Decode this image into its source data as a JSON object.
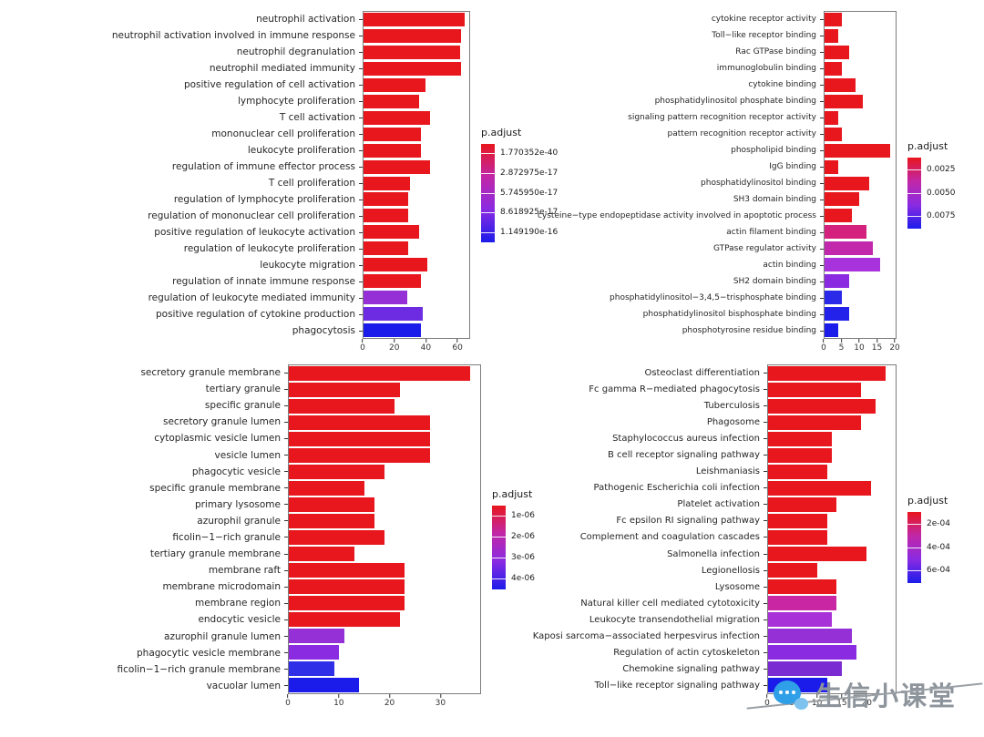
{
  "colors": {
    "background": "#ffffff",
    "bar_high_significance": "#E8161D",
    "bar_mid_significance": "#8A2BE2",
    "bar_low_significance": "#1C1CEA",
    "panel_border": "#7d7d7d"
  },
  "watermark": {
    "text": "生信小课堂",
    "icon": "chat-bubbles-icon",
    "text_color": "#8d949b",
    "icon_color": "#2f9fe8"
  },
  "chart_data": [
    {
      "type": "bar",
      "orientation": "horizontal",
      "position": "top-left",
      "title": "",
      "xlabel": "",
      "ylabel": "",
      "grid": false,
      "xlim": [
        0,
        68
      ],
      "xticks": [
        0,
        20,
        40,
        60
      ],
      "legend": {
        "title": "p.adjust",
        "position": "right",
        "labels": [
          "1.770352e-40",
          "2.872975e-17",
          "5.745950e-17",
          "8.618925e-17",
          "1.149190e-16"
        ],
        "gradient_top_to_bottom": [
          "#E8161D",
          "#C127A7",
          "#8A2BE2",
          "#1C1CEA"
        ]
      },
      "categories": [
        "neutrophil activation",
        "neutrophil activation involved in immune response",
        "neutrophil degranulation",
        "neutrophil mediated immunity",
        "positive regulation of cell activation",
        "lymphocyte proliferation",
        "T cell activation",
        "mononuclear cell proliferation",
        "leukocyte proliferation",
        "regulation of immune effector process",
        "T cell proliferation",
        "regulation of lymphocyte proliferation",
        "regulation of mononuclear cell proliferation",
        "positive regulation of leukocyte activation",
        "regulation of leukocyte proliferation",
        "leukocyte migration",
        "regulation of innate immune response",
        "regulation of leukocyte mediated immunity",
        "positive regulation of cytokine production",
        "phagocytosis"
      ],
      "values": [
        65,
        63,
        62,
        63,
        40,
        36,
        43,
        37,
        37,
        43,
        30,
        29,
        29,
        36,
        29,
        41,
        37,
        28,
        38,
        37
      ],
      "colors": [
        "#E8161D",
        "#E8161D",
        "#E8161D",
        "#E8161D",
        "#E8161D",
        "#E8161D",
        "#E8161D",
        "#E8161D",
        "#E8161D",
        "#E8161D",
        "#E8161D",
        "#E8161D",
        "#E8161D",
        "#E8161D",
        "#E8161D",
        "#E8161D",
        "#E8161D",
        "#9430D6",
        "#6E2CE2",
        "#1C1CEA"
      ]
    },
    {
      "type": "bar",
      "orientation": "horizontal",
      "position": "top-right",
      "title": "",
      "xlabel": "",
      "ylabel": "",
      "grid": false,
      "xlim": [
        0,
        20.5
      ],
      "xticks": [
        0,
        5,
        10,
        15,
        20
      ],
      "legend": {
        "title": "p.adjust",
        "position": "right",
        "labels": [
          "0.0025",
          "0.0050",
          "0.0075"
        ],
        "gradient_top_to_bottom": [
          "#E8161D",
          "#C127A7",
          "#8A2BE2",
          "#1C1CEA"
        ]
      },
      "categories": [
        "cytokine receptor activity",
        "Toll−like receptor binding",
        "Rac GTPase binding",
        "immunoglobulin binding",
        "cytokine binding",
        "phosphatidylinositol phosphate binding",
        "signaling pattern recognition receptor activity",
        "pattern recognition receptor activity",
        "phospholipid binding",
        "IgG binding",
        "phosphatidylinositol binding",
        "SH3 domain binding",
        "cysteine−type endopeptidase activity involved in apoptotic process",
        "actin filament binding",
        "GTPase regulator activity",
        "actin binding",
        "SH2 domain binding",
        "phosphatidylinositol−3,4,5−trisphosphate binding",
        "phosphatidylinositol bisphosphate binding",
        "phosphotyrosine residue binding"
      ],
      "values": [
        5,
        4,
        7,
        5,
        9,
        11,
        4,
        5,
        19,
        4,
        13,
        10,
        8,
        12,
        14,
        16,
        7,
        5,
        7,
        4
      ],
      "colors": [
        "#E8161D",
        "#E8161D",
        "#E8161D",
        "#E8161D",
        "#E8161D",
        "#E8161D",
        "#E8161D",
        "#E8161D",
        "#E8161D",
        "#E8161D",
        "#E8161D",
        "#E8161D",
        "#E8161D",
        "#D4217E",
        "#C228AC",
        "#A832DC",
        "#8A2BE2",
        "#2A2AE8",
        "#2222EA",
        "#1C1CEA"
      ]
    },
    {
      "type": "bar",
      "orientation": "horizontal",
      "position": "bottom-left",
      "title": "",
      "xlabel": "",
      "ylabel": "",
      "grid": false,
      "xlim": [
        0,
        38
      ],
      "xticks": [
        0,
        10,
        20,
        30
      ],
      "legend": {
        "title": "p.adjust",
        "position": "right",
        "labels": [
          "1e-06",
          "2e-06",
          "3e-06",
          "4e-06"
        ],
        "gradient_top_to_bottom": [
          "#E8161D",
          "#C127A7",
          "#8A2BE2",
          "#1C1CEA"
        ]
      },
      "categories": [
        "secretory granule membrane",
        "tertiary granule",
        "specific granule",
        "secretory granule lumen",
        "cytoplasmic vesicle lumen",
        "vesicle lumen",
        "phagocytic vesicle",
        "specific granule membrane",
        "primary lysosome",
        "azurophil granule",
        "ficolin−1−rich granule",
        "tertiary granule membrane",
        "membrane raft",
        "membrane microdomain",
        "membrane region",
        "endocytic vesicle",
        "azurophil granule lumen",
        "phagocytic vesicle membrane",
        "ficolin−1−rich granule membrane",
        "vacuolar lumen"
      ],
      "values": [
        36,
        22,
        21,
        28,
        28,
        28,
        19,
        15,
        17,
        17,
        19,
        13,
        23,
        23,
        23,
        22,
        11,
        10,
        9,
        14
      ],
      "colors": [
        "#E8161D",
        "#E8161D",
        "#E8161D",
        "#E8161D",
        "#E8161D",
        "#E8161D",
        "#E8161D",
        "#E8161D",
        "#E8161D",
        "#E8161D",
        "#E8161D",
        "#E8161D",
        "#E8161D",
        "#E8161D",
        "#E8161D",
        "#E8161D",
        "#9430D6",
        "#8A2BE2",
        "#2F2FE8",
        "#1C1CEA"
      ]
    },
    {
      "type": "bar",
      "orientation": "horizontal",
      "position": "bottom-right",
      "title": "",
      "xlabel": "",
      "ylabel": "",
      "grid": false,
      "xlim": [
        0,
        26
      ],
      "xticks": [
        0,
        5,
        10,
        15,
        20
      ],
      "legend": {
        "title": "p.adjust",
        "position": "right",
        "labels": [
          "2e-04",
          "4e-04",
          "6e-04"
        ],
        "gradient_top_to_bottom": [
          "#E8161D",
          "#C127A7",
          "#8A2BE2",
          "#1C1CEA"
        ]
      },
      "categories": [
        "Osteoclast differentiation",
        "Fc gamma R−mediated phagocytosis",
        "Tuberculosis",
        "Phagosome",
        "Staphylococcus aureus infection",
        "B cell receptor signaling pathway",
        "Leishmaniasis",
        "Pathogenic Escherichia coli infection",
        "Platelet activation",
        "Fc epsilon RI signaling pathway",
        "Complement and coagulation cascades",
        "Salmonella infection",
        "Legionellosis",
        "Lysosome",
        "Natural killer cell mediated cytotoxicity",
        "Leukocyte transendothelial migration",
        "Kaposi sarcoma−associated herpesvirus infection",
        "Regulation of actin cytoskeleton",
        "Chemokine signaling pathway",
        "Toll−like receptor signaling pathway"
      ],
      "values": [
        24,
        19,
        22,
        19,
        13,
        13,
        12,
        21,
        14,
        12,
        12,
        20,
        10,
        14,
        14,
        13,
        17,
        18,
        15,
        12
      ],
      "colors": [
        "#E8161D",
        "#E8161D",
        "#E8161D",
        "#E8161D",
        "#E8161D",
        "#E8161D",
        "#E8161D",
        "#E8161D",
        "#E8161D",
        "#E8161D",
        "#E8161D",
        "#E8161D",
        "#E8161D",
        "#E8161D",
        "#C926A4",
        "#A832D8",
        "#9430D6",
        "#8A2BE2",
        "#7B2BD2",
        "#1C1CEA"
      ]
    }
  ]
}
